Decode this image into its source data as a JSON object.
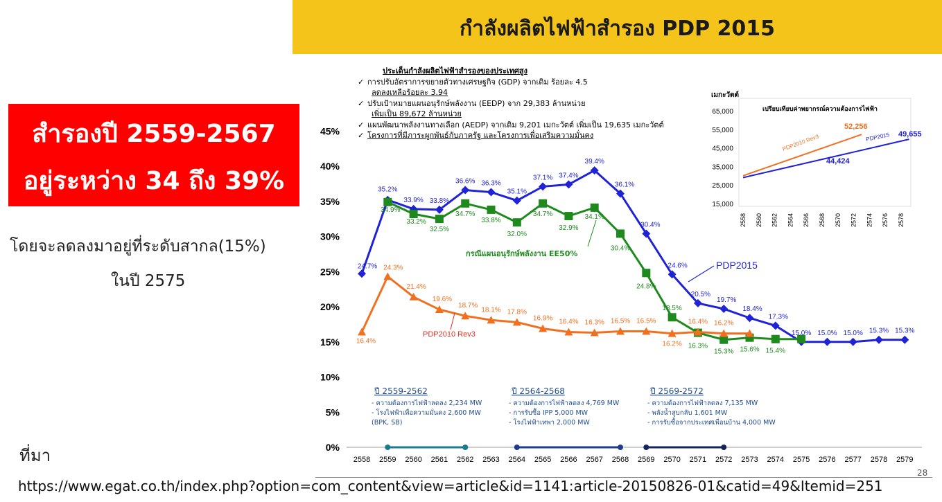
{
  "banner": {
    "title": "กำลังผลิตไฟฟ้าสำรอง PDP 2015"
  },
  "redbox": {
    "line1": "สำรองปี 2559-2567",
    "line2": "อยู่ระหว่าง 34 ถึง 39%"
  },
  "notes": {
    "line1": "โดยจะลดลงมาอยู่ที่ระดับสากล(15%)",
    "line2": "ในปี 2575"
  },
  "source": {
    "label": "ที่มา",
    "url": "https://www.egat.co.th/index.php?option=com_content&view=article&id=1141:article-20150826-01&catid=49&Itemid=251"
  },
  "page_number": "28",
  "issues": {
    "title": "ประเด็นกำลังผลิตไฟฟ้าสำรองของประเทศสูง",
    "items": [
      {
        "text": "การปรับอัตราการขยายตัวทางเศรษฐกิจ (GDP) จากเดิม ร้อยละ 4.5",
        "sub": "ลดลงเหลือร้อยละ 3.94"
      },
      {
        "text": "ปรับเป้าหมายแผนอนุรักษ์พลังงาน (EEDP) จาก 29,383 ล้านหน่วย",
        "sub": "เพิ่มเป็น 89,672 ล้านหน่วย"
      },
      {
        "text": "แผนพัฒนาพลังงานทางเลือก (AEDP) จากเดิม 9,201 เมกะวัตต์ เพิ่มเป็น 19,635 เมกะวัตต์",
        "sub": ""
      },
      {
        "text": "โครงการที่มีภาระผูกพันธ์กับภาครัฐ และโครงการเพื่อเสริมความมั่นคง",
        "sub": ""
      }
    ]
  },
  "colors": {
    "pdp2015": "#1F22D6",
    "ee50": "#1E8A1E",
    "pdp2010": "#F07020",
    "banner": "#F4C41A",
    "red": "#FF0000"
  },
  "chart_data": [
    {
      "type": "line",
      "title": "",
      "x": [
        "2558",
        "2559",
        "2560",
        "2561",
        "2562",
        "2563",
        "2564",
        "2565",
        "2566",
        "2567",
        "2568",
        "2569",
        "2570",
        "2571",
        "2572",
        "2573",
        "2574",
        "2575",
        "2576",
        "2577",
        "2578",
        "2579"
      ],
      "ylim": [
        0,
        45
      ],
      "yticks": [
        "0%",
        "5%",
        "10%",
        "15%",
        "20%",
        "25%",
        "30%",
        "35%",
        "40%",
        "45%"
      ],
      "series": [
        {
          "name": "PDP2015",
          "color": "#1F22D6",
          "marker": "diamond",
          "values": [
            24.7,
            35.2,
            33.9,
            33.8,
            36.6,
            36.3,
            35.1,
            37.1,
            37.4,
            39.4,
            36.1,
            30.4,
            24.6,
            20.5,
            19.7,
            18.4,
            17.3,
            15.0,
            15.0,
            15.0,
            15.3,
            15.3
          ],
          "labels": [
            "24.7%",
            "35.2%",
            "33.9%",
            "33.8%",
            "36.6%",
            "36.3%",
            "35.1%",
            "37.1%",
            "37.4%",
            "39.4%",
            "36.1%",
            "30.4%",
            "24.6%",
            "20.5%",
            "19.7%",
            "18.4%",
            "17.3%",
            "15.0%",
            "15.0%",
            "15.0%",
            "15.3%",
            "15.3%"
          ]
        },
        {
          "name": "กรณีแผนอนุรักษ์พลังงาน EE50%",
          "color": "#1E8A1E",
          "marker": "square",
          "values": [
            null,
            34.9,
            33.2,
            32.5,
            34.7,
            33.8,
            32.0,
            34.7,
            32.9,
            34.1,
            30.4,
            24.8,
            18.5,
            16.3,
            15.3,
            15.6,
            15.4,
            15.4,
            null,
            null,
            null,
            null
          ],
          "labels": [
            null,
            "34.9%",
            "33.2%",
            "32.5%",
            "34.7%",
            "33.8%",
            "32.0%",
            "34.7%",
            "32.9%",
            "34.1%",
            "30.4%",
            "24.8%",
            "18.5%",
            "16.3%",
            "15.3%",
            "15.6%",
            "15.4%",
            null,
            null,
            null,
            null,
            null
          ]
        },
        {
          "name": "PDP2010 Rev3",
          "color": "#F07020",
          "marker": "triangle",
          "values": [
            16.4,
            24.3,
            21.4,
            19.6,
            18.7,
            18.1,
            17.8,
            16.9,
            16.4,
            16.3,
            16.5,
            16.5,
            16.2,
            16.4,
            16.2,
            16.2,
            null,
            null,
            null,
            null,
            null,
            null
          ],
          "labels": [
            "16.4%",
            "24.3%",
            "21.4%",
            "19.6%",
            "18.7%",
            "18.1%",
            "17.8%",
            "16.9%",
            "16.4%",
            "16.3%",
            "16.5%",
            "16.5%",
            "16.2%",
            "16.4%",
            "16.2%",
            null,
            null,
            null,
            null,
            null,
            null,
            null
          ]
        }
      ],
      "annotations": {
        "ee50_label": "กรณีแผนอนุรักษ์พลังงาน EE50%",
        "pdp2015_label": "PDP2015",
        "pdp2010_label": "PDP2010 Rev3",
        "periods": [
          {
            "title": "ปี 2559-2562",
            "lines": [
              "- ความต้องการไฟฟ้าลดลง 2,234 MW",
              "- โรงไฟฟ้าเพื่อความมั่นคง 2,600 MW",
              "(BPK, SB)"
            ]
          },
          {
            "title": "ปี 2564-2568",
            "lines": [
              "- ความต้องการไฟฟ้าลดลง 4,769 MW",
              "- การรับซื้อ IPP 5,000 MW",
              "- โรงไฟฟ้าเทพา 2,000 MW"
            ]
          },
          {
            "title": "ปี 2569-2572",
            "lines": [
              "- ความต้องการไฟฟ้าลดลง 7,135 MW",
              "- พลังน้ำสูบกลับ 1,601 MW",
              "- การรับซื้อจากประเทศเพื่อนบ้าน 4,000 MW"
            ]
          }
        ]
      }
    },
    {
      "type": "line",
      "title": "เปรียบเทียบค่าพยากรณ์ความต้องการไฟฟ้า",
      "ylabel": "เมกะวัตต์",
      "x": [
        "2558",
        "2560",
        "2562",
        "2564",
        "2566",
        "2568",
        "2570",
        "2572",
        "2574",
        "2576",
        "2578"
      ],
      "ylim": [
        15000,
        65000
      ],
      "yticks": [
        "15,000",
        "25,000",
        "35,000",
        "45,000",
        "55,000",
        "65,000"
      ],
      "series": [
        {
          "name": "PDP2010 Rev3",
          "color": "#F07020",
          "from": [
            2558,
            30000
          ],
          "to": [
            2573,
            52256
          ],
          "end_label": "52,256"
        },
        {
          "name": "PDP2015",
          "color": "#1F22D6",
          "from": [
            2558,
            29000
          ],
          "to": [
            2579,
            49655
          ],
          "end_label": "49,655",
          "mid_label": "44,424"
        }
      ]
    }
  ]
}
